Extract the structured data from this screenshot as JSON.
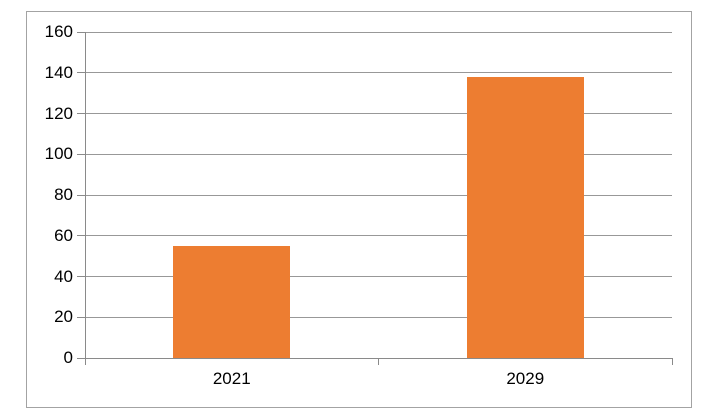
{
  "chart_data": {
    "type": "bar",
    "categories": [
      "2021",
      "2029"
    ],
    "values": [
      55,
      138
    ],
    "title": "",
    "xlabel": "",
    "ylabel": "",
    "ylim": [
      0,
      160
    ],
    "yticks": [
      0,
      20,
      40,
      60,
      80,
      100,
      120,
      140,
      160
    ],
    "grid": true,
    "legend": false,
    "legend_position": "none",
    "colors": {
      "bar": "#ED7D31",
      "gridline": "#989898",
      "axis": "#8a8a8a",
      "frame_border": "#a3a3a3",
      "text": "#000000",
      "background": "#FFFFFF"
    }
  }
}
